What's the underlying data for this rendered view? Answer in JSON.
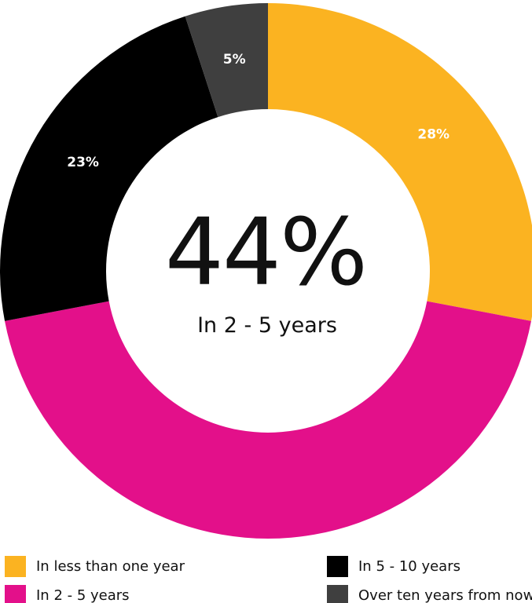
{
  "chart_data": {
    "type": "pie",
    "donut": true,
    "categories": [
      "In less than one year",
      "In 2 - 5 years",
      "In 5 - 10 years",
      "Over ten years from now"
    ],
    "values": [
      28,
      44,
      23,
      5
    ],
    "slice_labels": [
      "28%",
      "",
      "23%",
      "5%"
    ],
    "colors": [
      "#FBB321",
      "#E3108A",
      "#000000",
      "#3F3F3F"
    ],
    "center_value": "44%",
    "center_caption": "In 2 - 5 years",
    "legend_position": "bottom",
    "start_angle_deg": 0,
    "direction": "clockwise"
  },
  "legend": {
    "items": [
      {
        "label": "In less than one year",
        "color": "#FBB321"
      },
      {
        "label": "In 2 - 5 years",
        "color": "#E3108A"
      },
      {
        "label": "In 5 - 10 years",
        "color": "#000000"
      },
      {
        "label": "Over ten years from now",
        "color": "#3F3F3F"
      }
    ]
  }
}
